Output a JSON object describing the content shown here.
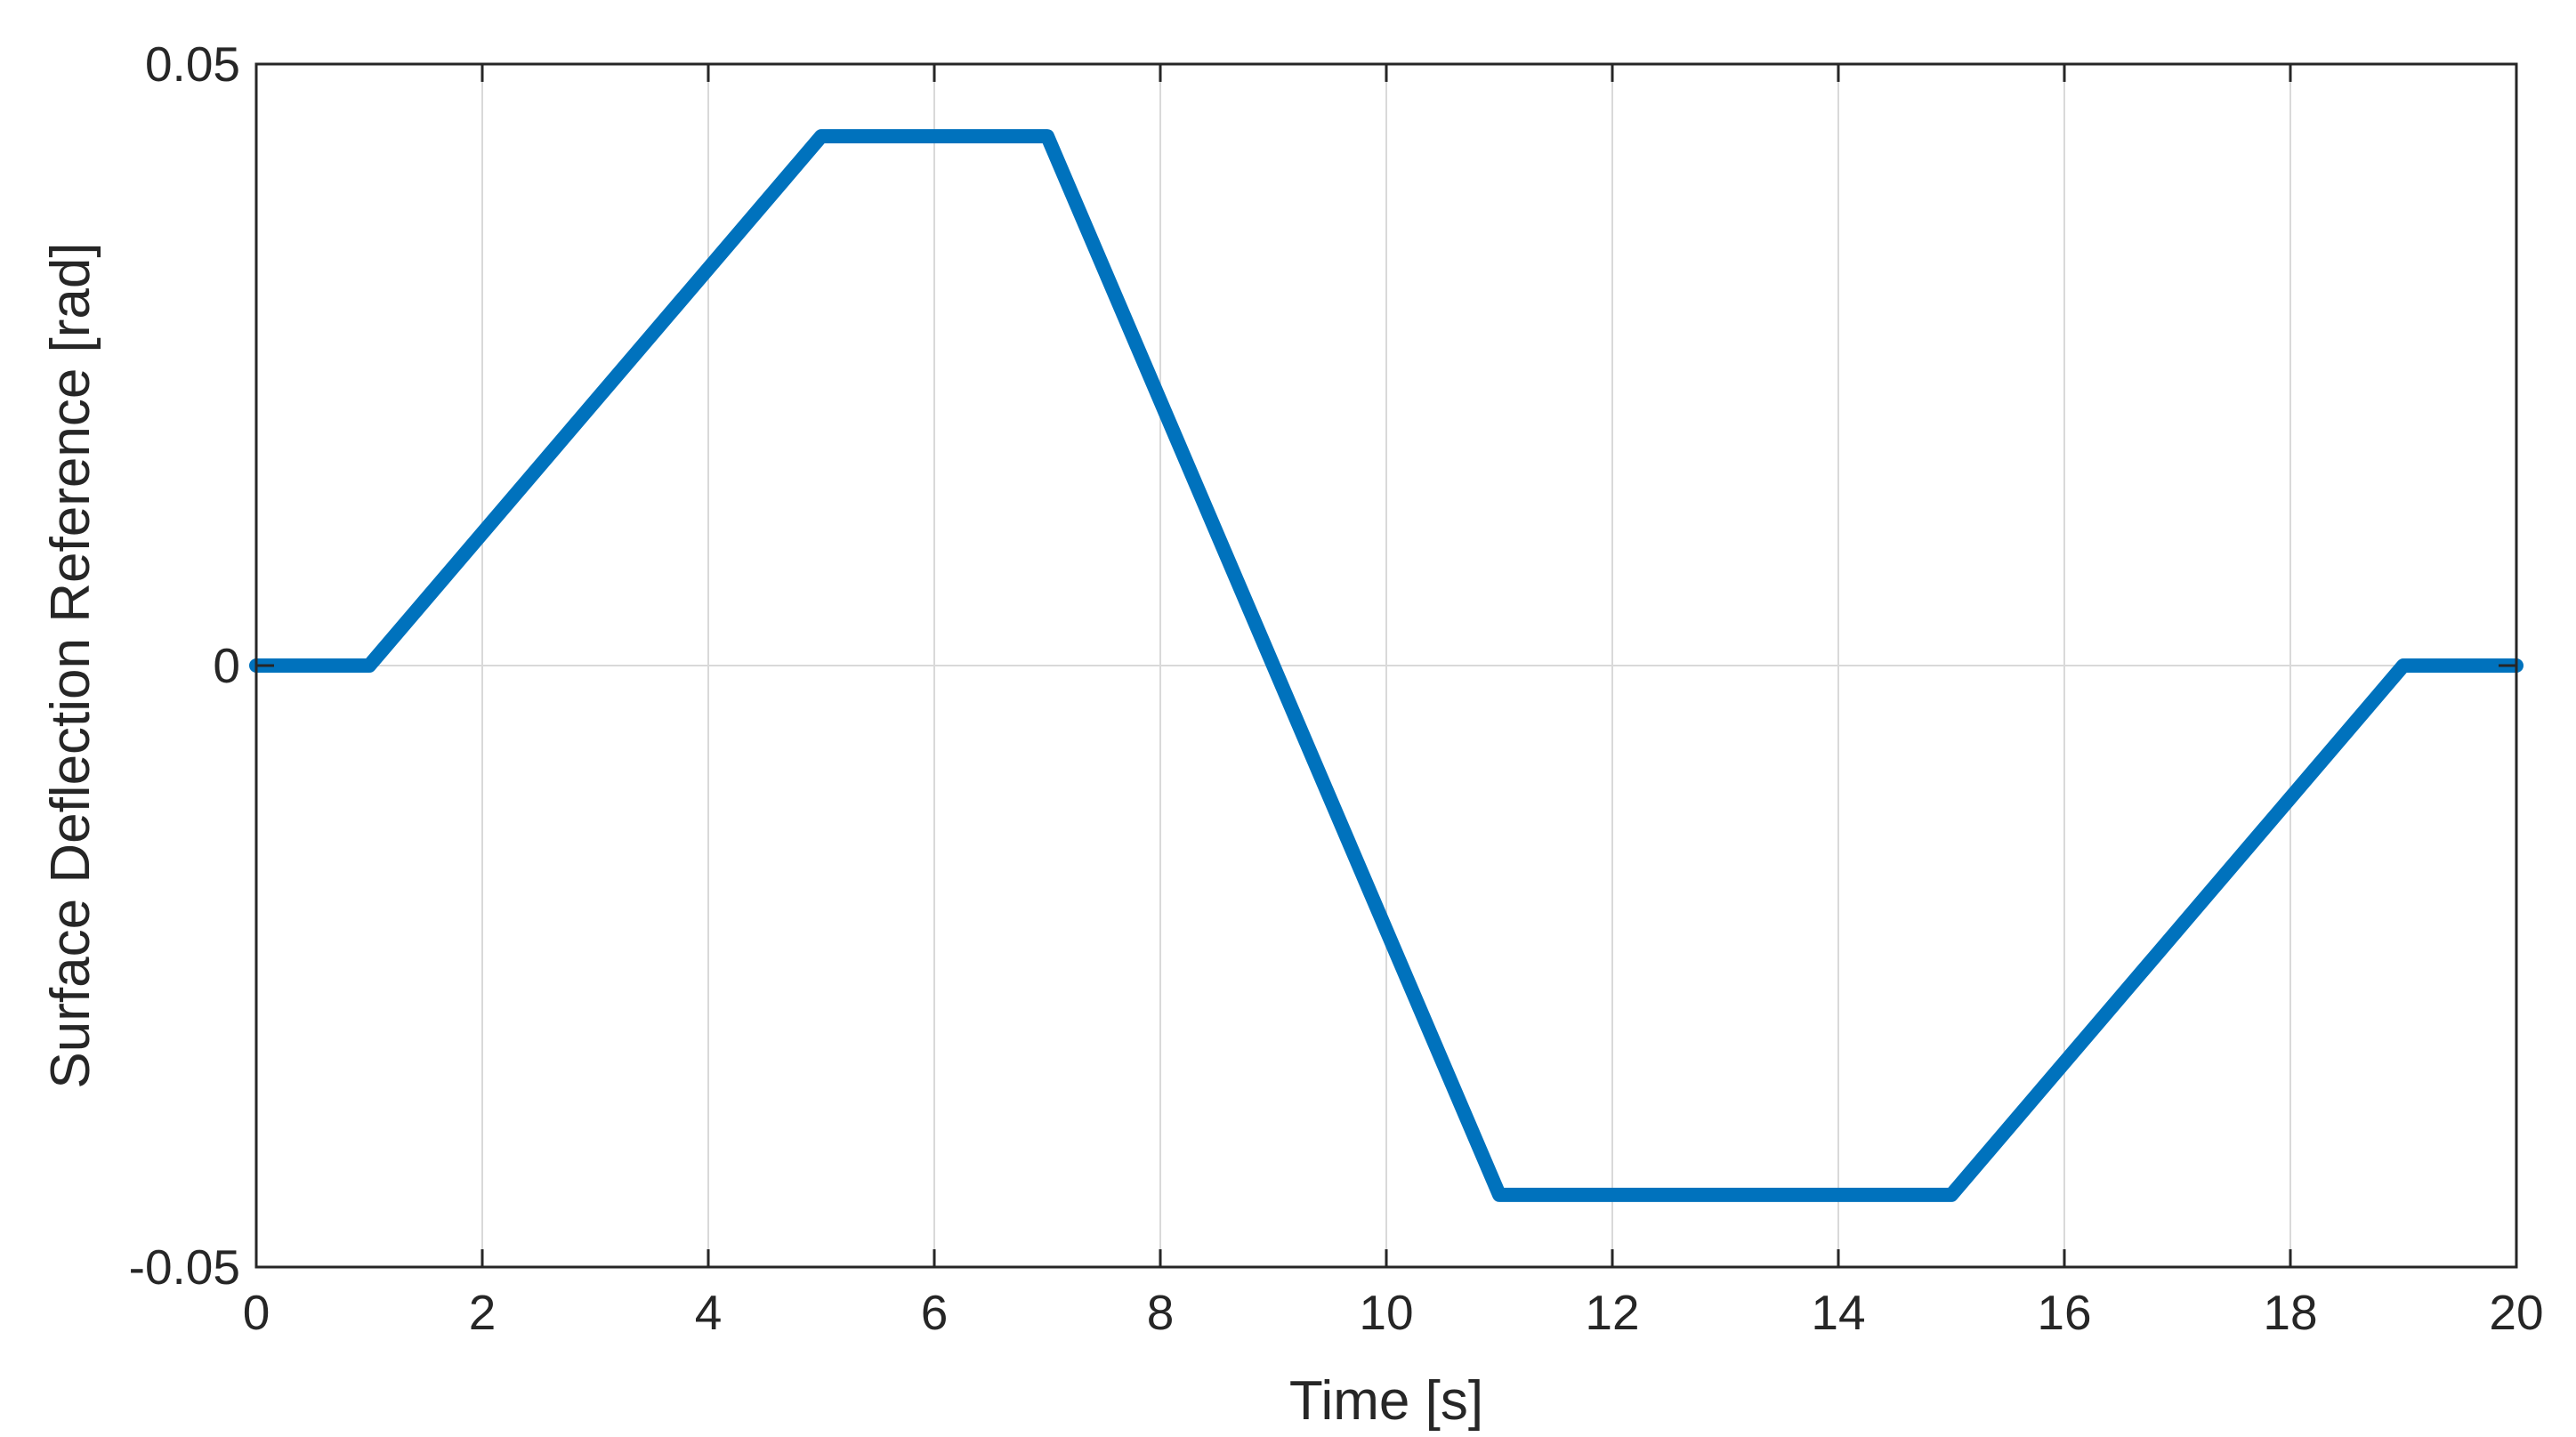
{
  "chart_data": {
    "type": "line",
    "title": "",
    "xlabel": "Time [s]",
    "ylabel": "Surface Deflection Reference [rad]",
    "xlim": [
      0,
      20
    ],
    "ylim": [
      -0.05,
      0.05
    ],
    "grid": true,
    "x_ticks": [
      {
        "value": 0,
        "label": "0"
      },
      {
        "value": 2,
        "label": "2"
      },
      {
        "value": 4,
        "label": "4"
      },
      {
        "value": 6,
        "label": "6"
      },
      {
        "value": 8,
        "label": "8"
      },
      {
        "value": 10,
        "label": "10"
      },
      {
        "value": 12,
        "label": "12"
      },
      {
        "value": 14,
        "label": "14"
      },
      {
        "value": 16,
        "label": "16"
      },
      {
        "value": 18,
        "label": "18"
      },
      {
        "value": 20,
        "label": "20"
      }
    ],
    "y_ticks": [
      {
        "value": -0.05,
        "label": "-0.05"
      },
      {
        "value": 0,
        "label": "0"
      },
      {
        "value": 0.05,
        "label": "0.05"
      }
    ],
    "series": [
      {
        "color": "#0072bd",
        "x": [
          0,
          1,
          5,
          7,
          11,
          15,
          19,
          20
        ],
        "y": [
          0,
          0,
          0.044,
          0.044,
          -0.044,
          -0.044,
          0,
          0
        ]
      }
    ]
  }
}
